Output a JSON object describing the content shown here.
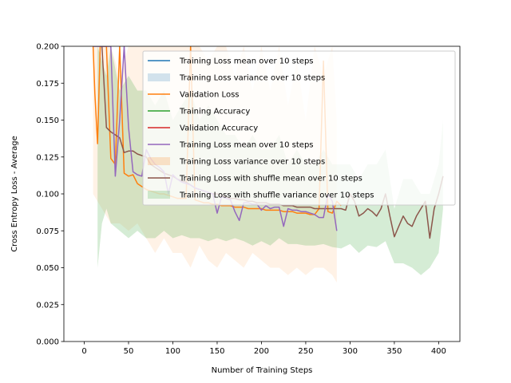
{
  "chart_data": {
    "type": "line",
    "xlabel": "Number of Training Steps",
    "ylabel": "Cross Entropy Loss - Average",
    "xlim": [
      -23,
      424
    ],
    "ylim": [
      0.0,
      0.2
    ],
    "x_ticks": [
      0,
      50,
      100,
      150,
      200,
      250,
      300,
      350,
      400
    ],
    "y_ticks": [
      0.0,
      0.025,
      0.05,
      0.075,
      0.1,
      0.125,
      0.15,
      0.175,
      0.2
    ],
    "x_tick_labels": [
      "0",
      "50",
      "100",
      "150",
      "200",
      "250",
      "300",
      "350",
      "400"
    ],
    "y_tick_labels": [
      "0.000",
      "0.025",
      "0.050",
      "0.075",
      "0.100",
      "0.125",
      "0.150",
      "0.175",
      "0.200"
    ],
    "grid": false,
    "legend_position": "upper right",
    "legend": [
      {
        "label": "Training Loss mean over 10 steps",
        "kind": "line",
        "color": "#1f77b4"
      },
      {
        "label": "Training Loss variance over 10 steps",
        "kind": "band",
        "color": "#1f77b4"
      },
      {
        "label": "Validation Loss",
        "kind": "line",
        "color": "#ff7f0e"
      },
      {
        "label": "Training Accuracy",
        "kind": "line",
        "color": "#2ca02c"
      },
      {
        "label": "Validation Accuracy",
        "kind": "line",
        "color": "#d62728"
      },
      {
        "label": "Training Loss mean over 10 steps",
        "kind": "line",
        "color": "#9467bd"
      },
      {
        "label": "Training Loss variance over 10 steps",
        "kind": "band",
        "color": "#ff7f0e"
      },
      {
        "label": "Training Loss with shuffle mean over 10 steps",
        "kind": "line",
        "color": "#8c564b"
      },
      {
        "label": "Training Loss with shuffle variance over 10 steps",
        "kind": "band",
        "color": "#2ca02c"
      }
    ],
    "bands": [
      {
        "name": "Training Loss variance over 10 steps (orange)",
        "color": "#ff7f0e",
        "opacity": 0.1,
        "x": [
          10,
          20,
          30,
          40,
          50,
          60,
          70,
          80,
          90,
          100,
          110,
          120,
          130,
          140,
          150,
          160,
          170,
          180,
          190,
          200,
          210,
          220,
          230,
          240,
          250,
          260,
          270,
          280,
          285
        ],
        "upper": [
          0.2,
          0.2,
          0.2,
          0.18,
          0.2,
          0.2,
          0.2,
          0.2,
          0.2,
          0.2,
          0.2,
          0.2,
          0.2,
          0.19,
          0.2,
          0.2,
          0.18,
          0.2,
          0.17,
          0.2,
          0.17,
          0.2,
          0.16,
          0.19,
          0.15,
          0.2,
          0.18,
          0.2,
          0.15
        ],
        "lower": [
          0.1,
          0.09,
          0.08,
          0.08,
          0.075,
          0.08,
          0.07,
          0.06,
          0.07,
          0.06,
          0.06,
          0.05,
          0.065,
          0.055,
          0.05,
          0.06,
          0.055,
          0.05,
          0.06,
          0.055,
          0.05,
          0.05,
          0.045,
          0.05,
          0.045,
          0.05,
          0.05,
          0.045,
          0.04
        ]
      },
      {
        "name": "Training Loss with shuffle variance over 10 steps",
        "color": "#2ca02c",
        "opacity": 0.2,
        "x": [
          15,
          20,
          25,
          30,
          40,
          50,
          60,
          70,
          80,
          90,
          100,
          110,
          120,
          130,
          140,
          150,
          160,
          170,
          180,
          190,
          200,
          210,
          220,
          230,
          240,
          250,
          260,
          270,
          280,
          290,
          300,
          310,
          320,
          330,
          340,
          350,
          360,
          370,
          380,
          390,
          400,
          405
        ],
        "upper": [
          0.2,
          0.19,
          0.18,
          0.2,
          0.17,
          0.18,
          0.17,
          0.17,
          0.16,
          0.17,
          0.15,
          0.16,
          0.17,
          0.15,
          0.16,
          0.15,
          0.14,
          0.14,
          0.13,
          0.14,
          0.13,
          0.13,
          0.14,
          0.12,
          0.13,
          0.12,
          0.12,
          0.13,
          0.12,
          0.12,
          0.12,
          0.11,
          0.12,
          0.12,
          0.13,
          0.09,
          0.11,
          0.11,
          0.1,
          0.1,
          0.12,
          0.15
        ],
        "lower": [
          0.05,
          0.08,
          0.09,
          0.08,
          0.075,
          0.07,
          0.075,
          0.07,
          0.07,
          0.075,
          0.07,
          0.072,
          0.07,
          0.07,
          0.068,
          0.07,
          0.068,
          0.07,
          0.068,
          0.065,
          0.068,
          0.065,
          0.07,
          0.066,
          0.066,
          0.065,
          0.065,
          0.066,
          0.064,
          0.063,
          0.066,
          0.06,
          0.065,
          0.064,
          0.068,
          0.053,
          0.053,
          0.05,
          0.045,
          0.05,
          0.06,
          0.09
        ]
      }
    ],
    "series": [
      {
        "name": "Validation Loss",
        "color": "#ff7f0e",
        "x": [
          10,
          12,
          15,
          18,
          20,
          22,
          25,
          30,
          35,
          40,
          45,
          50,
          55,
          60,
          65,
          70,
          75,
          80,
          85,
          90,
          95,
          100,
          105,
          110,
          115,
          120,
          125,
          130,
          135,
          140,
          145,
          150,
          155,
          160,
          165,
          170,
          175,
          180,
          185,
          190,
          195,
          200,
          205,
          210,
          215,
          220,
          225,
          230,
          235,
          240,
          245,
          250,
          255,
          260,
          265,
          270,
          275,
          280,
          285,
          290
        ],
        "y": [
          0.2,
          0.168,
          0.134,
          0.2,
          0.2,
          0.2,
          0.2,
          0.124,
          0.12,
          0.2,
          0.114,
          0.112,
          0.113,
          0.107,
          0.105,
          0.103,
          0.102,
          0.101,
          0.1,
          0.1,
          0.099,
          0.098,
          0.097,
          0.097,
          0.097,
          0.2,
          0.096,
          0.095,
          0.094,
          0.094,
          0.093,
          0.093,
          0.092,
          0.092,
          0.092,
          0.091,
          0.091,
          0.091,
          0.09,
          0.09,
          0.09,
          0.09,
          0.089,
          0.089,
          0.089,
          0.089,
          0.088,
          0.088,
          0.088,
          0.087,
          0.087,
          0.087,
          0.086,
          0.086,
          0.09,
          0.19,
          0.088,
          0.087,
          0.095,
          0.092
        ]
      },
      {
        "name": "Training Loss with shuffle mean over 10 steps",
        "color": "#8c564b",
        "x": [
          20,
          25,
          30,
          35,
          40,
          45,
          50,
          55,
          60,
          65,
          70,
          75,
          80,
          85,
          90,
          95,
          100,
          105,
          110,
          115,
          120,
          125,
          130,
          135,
          140,
          145,
          150,
          155,
          160,
          165,
          170,
          175,
          180,
          185,
          190,
          195,
          200,
          205,
          210,
          215,
          220,
          225,
          230,
          235,
          240,
          245,
          250,
          255,
          260,
          265,
          270,
          275,
          280,
          285,
          290,
          295,
          300,
          305,
          310,
          315,
          320,
          325,
          330,
          335,
          340,
          345,
          350,
          355,
          360,
          365,
          370,
          375,
          380,
          385,
          390,
          395,
          400,
          405
        ],
        "y": [
          0.2,
          0.145,
          0.142,
          0.14,
          0.138,
          0.128,
          0.129,
          0.129,
          0.127,
          0.126,
          0.125,
          0.12,
          0.118,
          0.116,
          0.114,
          0.113,
          0.112,
          0.11,
          0.109,
          0.108,
          0.106,
          0.104,
          0.103,
          0.102,
          0.101,
          0.1,
          0.1,
          0.099,
          0.098,
          0.097,
          0.097,
          0.096,
          0.096,
          0.095,
          0.095,
          0.094,
          0.094,
          0.094,
          0.093,
          0.093,
          0.093,
          0.092,
          0.092,
          0.092,
          0.091,
          0.091,
          0.091,
          0.091,
          0.09,
          0.09,
          0.09,
          0.09,
          0.09,
          0.09,
          0.09,
          0.089,
          0.1,
          0.095,
          0.085,
          0.087,
          0.09,
          0.088,
          0.085,
          0.09,
          0.1,
          0.085,
          0.071,
          0.078,
          0.085,
          0.08,
          0.078,
          0.085,
          0.09,
          0.095,
          0.07,
          0.09,
          0.1,
          0.112
        ]
      },
      {
        "name": "Training Loss mean over 10 steps",
        "color": "#9467bd",
        "x": [
          10,
          15,
          20,
          25,
          30,
          35,
          40,
          45,
          50,
          55,
          60,
          65,
          70,
          75,
          80,
          85,
          90,
          95,
          100,
          105,
          110,
          115,
          120,
          125,
          130,
          135,
          140,
          145,
          150,
          155,
          160,
          165,
          170,
          175,
          180,
          185,
          190,
          195,
          200,
          205,
          210,
          215,
          220,
          225,
          230,
          235,
          240,
          245,
          250,
          255,
          260,
          265,
          270,
          275,
          280,
          285
        ],
        "y": [
          0.2,
          0.2,
          0.2,
          0.2,
          0.2,
          0.112,
          0.15,
          0.2,
          0.145,
          0.115,
          0.113,
          0.112,
          0.13,
          0.124,
          0.12,
          0.118,
          0.115,
          0.1,
          0.113,
          0.11,
          0.108,
          0.107,
          0.106,
          0.104,
          0.103,
          0.102,
          0.101,
          0.1,
          0.087,
          0.098,
          0.097,
          0.096,
          0.088,
          0.082,
          0.094,
          0.094,
          0.093,
          0.093,
          0.089,
          0.092,
          0.09,
          0.091,
          0.091,
          0.078,
          0.09,
          0.089,
          0.089,
          0.088,
          0.088,
          0.087,
          0.086,
          0.084,
          0.084,
          0.1,
          0.095,
          0.075
        ]
      }
    ]
  }
}
